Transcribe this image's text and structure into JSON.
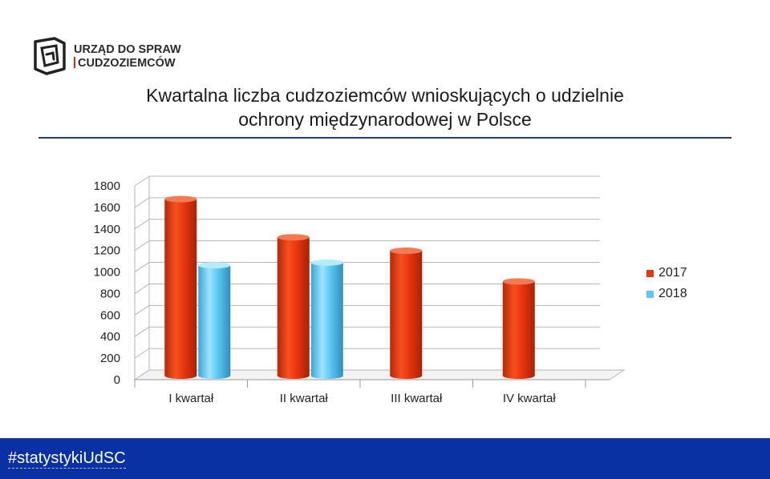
{
  "logo": {
    "line1": "URZĄD DO SPRAW",
    "line2": "CUDZOZIEMCÓW"
  },
  "title_line1": "Kwartalna liczba cudzoziemców wnioskujących o udzielnie",
  "title_line2": "ochrony międzynarodowej w Polsce",
  "footer": {
    "hashtag": "#statystykiUdSC"
  },
  "colors": {
    "s2017": "#e8360f",
    "s2018": "#5cc8f2",
    "footer": "#0a31a3",
    "rule": "#1e3a7a"
  },
  "chart_data": {
    "type": "bar",
    "title": "Kwartalna liczba cudzoziemców wnioskujących o udzielnie ochrony międzynarodowej w Polsce",
    "categories": [
      "I kwartał",
      "II kwartał",
      "III kwartał",
      "IV kwartał"
    ],
    "series": [
      {
        "name": "2017",
        "values": [
          1640,
          1285,
          1160,
          875
        ]
      },
      {
        "name": "2018",
        "values": [
          1025,
          1050,
          null,
          null
        ]
      }
    ],
    "ylim": [
      0,
      1800
    ],
    "yticks": [
      0,
      200,
      400,
      600,
      800,
      1000,
      1200,
      1400,
      1600,
      1800
    ],
    "grid": true,
    "legend": "right"
  }
}
